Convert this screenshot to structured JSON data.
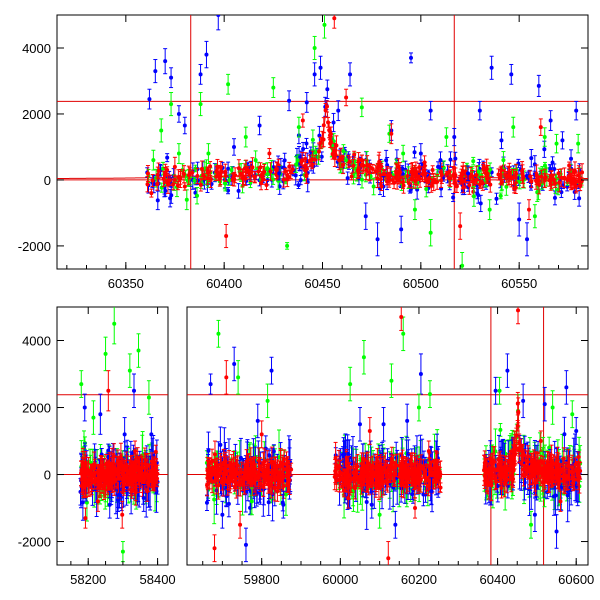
{
  "colors": {
    "blue": "#0000ff",
    "green": "#00ff00",
    "red": "#ff0000",
    "refline": "#e00000",
    "axes": "#000000"
  },
  "chart_data": [
    {
      "type": "scatter",
      "xlim": [
        60315,
        60585
      ],
      "ylim": [
        -2700,
        5000
      ],
      "x_ticks": [
        60350,
        60400,
        60450,
        60500,
        60550
      ],
      "y_ticks": [
        -2000,
        0,
        2000,
        4000
      ],
      "hlines": [
        0,
        2380
      ],
      "vlines": [
        60383,
        60517
      ],
      "peak": {
        "center": 60452,
        "height": 2400
      },
      "series": [
        {
          "color": "blue",
          "points": [
            [
              60362,
              2450,
              300
            ],
            [
              60365,
              3300,
              350
            ],
            [
              60370,
              3600,
              380
            ],
            [
              60373,
              3100,
              300
            ],
            [
              60377,
              2000,
              250
            ],
            [
              60380,
              1650,
              250
            ],
            [
              60388,
              3200,
              300
            ],
            [
              60391,
              3800,
              400
            ],
            [
              60397,
              5000,
              450
            ],
            [
              60405,
              1000,
              250
            ],
            [
              60418,
              1650,
              280
            ],
            [
              60428,
              200,
              200
            ],
            [
              60433,
              2400,
              300
            ],
            [
              60438,
              1350,
              250
            ],
            [
              60442,
              2350,
              300
            ],
            [
              60446,
              3200,
              350
            ],
            [
              60449,
              3400,
              350
            ],
            [
              60458,
              2100,
              300
            ],
            [
              60464,
              3200,
              350
            ],
            [
              60472,
              -1100,
              400
            ],
            [
              60478,
              -1800,
              500
            ],
            [
              60481,
              -200,
              300
            ],
            [
              60485,
              1500,
              300
            ],
            [
              60490,
              -1500,
              400
            ],
            [
              60495,
              3700,
              150
            ],
            [
              60500,
              800,
              300
            ],
            [
              60505,
              2100,
              280
            ],
            [
              60510,
              600,
              250
            ],
            [
              60517,
              1300,
              260
            ],
            [
              60524,
              200,
              220
            ],
            [
              60530,
              2100,
              280
            ],
            [
              60536,
              3400,
              350
            ],
            [
              60541,
              1200,
              250
            ],
            [
              60546,
              3200,
              300
            ],
            [
              60550,
              -1200,
              500
            ],
            [
              60554,
              -1800,
              500
            ],
            [
              60560,
              2850,
              320
            ],
            [
              60566,
              1800,
              300
            ],
            [
              60572,
              1200,
              260
            ],
            [
              60579,
              2100,
              280
            ]
          ]
        },
        {
          "color": "green",
          "points": [
            [
              60364,
              600,
              300
            ],
            [
              60368,
              1500,
              350
            ],
            [
              60373,
              2300,
              350
            ],
            [
              60377,
              800,
              300
            ],
            [
              60381,
              -600,
              300
            ],
            [
              60388,
              2300,
              350
            ],
            [
              60392,
              800,
              300
            ],
            [
              60402,
              2900,
              300
            ],
            [
              60411,
              1300,
              300
            ],
            [
              60416,
              600,
              280
            ],
            [
              60425,
              2800,
              300
            ],
            [
              60432,
              -2000,
              100
            ],
            [
              60438,
              1600,
              300
            ],
            [
              60446,
              4000,
              350
            ],
            [
              60451,
              4700,
              400
            ],
            [
              60462,
              600,
              250
            ],
            [
              60470,
              2200,
              280
            ],
            [
              60476,
              -200,
              250
            ],
            [
              60484,
              1400,
              260
            ],
            [
              60491,
              800,
              250
            ],
            [
              60497,
              -900,
              300
            ],
            [
              60505,
              -1600,
              400
            ],
            [
              60513,
              1300,
              280
            ],
            [
              60521,
              -2600,
              400
            ],
            [
              60527,
              -500,
              300
            ],
            [
              60535,
              -900,
              300
            ],
            [
              60542,
              600,
              260
            ],
            [
              60547,
              1600,
              300
            ],
            [
              60558,
              -1100,
              350
            ],
            [
              60563,
              1300,
              280
            ],
            [
              60569,
              1100,
              280
            ],
            [
              60580,
              1100,
              280
            ]
          ]
        },
        {
          "color": "red",
          "points": [
            [
              60363,
              -400,
              120
            ],
            [
              60371,
              300,
              100
            ],
            [
              60380,
              -200,
              110
            ],
            [
              60390,
              100,
              90
            ],
            [
              60401,
              -1700,
              350
            ],
            [
              60412,
              300,
              100
            ],
            [
              60423,
              800,
              150
            ],
            [
              60440,
              1800,
              200
            ],
            [
              60456,
              4900,
              300
            ],
            [
              60462,
              2500,
              250
            ],
            [
              60470,
              600,
              150
            ],
            [
              60480,
              -200,
              120
            ],
            [
              60485,
              1400,
              300
            ],
            [
              60494,
              -100,
              120
            ],
            [
              60506,
              300,
              130
            ],
            [
              60520,
              -1400,
              400
            ],
            [
              60532,
              400,
              130
            ],
            [
              60541,
              300,
              120
            ],
            [
              60555,
              -900,
              300
            ],
            [
              60561,
              1600,
              250
            ],
            [
              60570,
              200,
              120
            ],
            [
              60578,
              -100,
              120
            ]
          ]
        }
      ]
    },
    {
      "type": "scatter",
      "broken_x_axis": true,
      "ylim": [
        -2700,
        5000
      ],
      "y_ticks": [
        -2000,
        0,
        2000,
        4000
      ],
      "hlines": [
        0,
        2380
      ],
      "x_ticks": [
        58200,
        58400,
        59800,
        60000,
        60200,
        60400,
        60600
      ],
      "segments": [
        {
          "xlim": [
            58110,
            58430
          ],
          "data_range": [
            58175,
            58400
          ]
        },
        {
          "xlim": [
            59610,
            60630
          ],
          "data_range": [
            59660,
            60610
          ],
          "gaps": [
            [
              59875,
              59985
            ],
            [
              60255,
              60365
            ]
          ]
        }
      ],
      "vlines": [
        60383,
        60517
      ],
      "peak": {
        "center": 60452,
        "height": 2400
      },
      "series": [
        {
          "color": "blue",
          "points": [
            [
              58190,
              2000,
              400
            ],
            [
              58235,
              1800,
              600
            ],
            [
              58262,
              -900,
              400
            ],
            [
              58290,
              -600,
              400
            ],
            [
              58305,
              1200,
              500
            ],
            [
              58332,
              2500,
              500
            ],
            [
              58360,
              -700,
              400
            ],
            [
              58382,
              1200,
              500
            ],
            [
              59670,
              2700,
              300
            ],
            [
              59700,
              -1200,
              400
            ],
            [
              59730,
              3300,
              500
            ],
            [
              59760,
              -2100,
              500
            ],
            [
              59790,
              1600,
              500
            ],
            [
              59825,
              3100,
              400
            ],
            [
              59855,
              -900,
              400
            ],
            [
              60010,
              600,
              400
            ],
            [
              60050,
              1500,
              500
            ],
            [
              60080,
              -900,
              400
            ],
            [
              60110,
              1500,
              500
            ],
            [
              60140,
              -1500,
              400
            ],
            [
              60170,
              1600,
              500
            ],
            [
              60205,
              3000,
              600
            ],
            [
              60232,
              -500,
              400
            ],
            [
              60395,
              2500,
              400
            ],
            [
              60425,
              3100,
              500
            ],
            [
              60465,
              2200,
              500
            ],
            [
              60495,
              -1200,
              500
            ],
            [
              60520,
              2100,
              500
            ],
            [
              60550,
              -1700,
              500
            ],
            [
              60575,
              2600,
              500
            ],
            [
              60600,
              1300,
              400
            ]
          ]
        },
        {
          "color": "green",
          "points": [
            [
              58180,
              2700,
              400
            ],
            [
              58215,
              1700,
              500
            ],
            [
              58250,
              3600,
              500
            ],
            [
              58275,
              4500,
              600
            ],
            [
              58300,
              -2300,
              300
            ],
            [
              58320,
              3100,
              500
            ],
            [
              58345,
              3700,
              500
            ],
            [
              58375,
              2300,
              500
            ],
            [
              59690,
              4200,
              400
            ],
            [
              59740,
              2900,
              500
            ],
            [
              59775,
              -800,
              400
            ],
            [
              59815,
              2200,
              500
            ],
            [
              60025,
              2700,
              500
            ],
            [
              60060,
              3500,
              500
            ],
            [
              60100,
              -1200,
              400
            ],
            [
              60130,
              2800,
              500
            ],
            [
              60160,
              4200,
              500
            ],
            [
              60200,
              2000,
              400
            ],
            [
              60228,
              2400,
              400
            ],
            [
              60405,
              2500,
              400
            ],
            [
              60485,
              -1500,
              400
            ],
            [
              60540,
              2000,
              500
            ],
            [
              60590,
              1800,
              400
            ]
          ]
        },
        {
          "color": "red",
          "points": [
            [
              58192,
              -1300,
              300
            ],
            [
              58228,
              -800,
              300
            ],
            [
              58258,
              2500,
              600
            ],
            [
              58298,
              -1200,
              400
            ],
            [
              58335,
              700,
              300
            ],
            [
              58370,
              -500,
              300
            ],
            [
              59680,
              -2200,
              400
            ],
            [
              59710,
              2900,
              500
            ],
            [
              59745,
              -1500,
              400
            ],
            [
              59800,
              1200,
              400
            ],
            [
              59840,
              -500,
              300
            ],
            [
              60020,
              -700,
              300
            ],
            [
              60075,
              1300,
              400
            ],
            [
              60122,
              -2500,
              500
            ],
            [
              60155,
              4700,
              400
            ],
            [
              60190,
              -1000,
              300
            ],
            [
              60225,
              700,
              300
            ],
            [
              60410,
              -400,
              300
            ],
            [
              60452,
              4900,
              400
            ],
            [
              60510,
              1000,
              300
            ],
            [
              60560,
              -800,
              300
            ],
            [
              60598,
              300,
              200
            ]
          ]
        }
      ]
    }
  ]
}
